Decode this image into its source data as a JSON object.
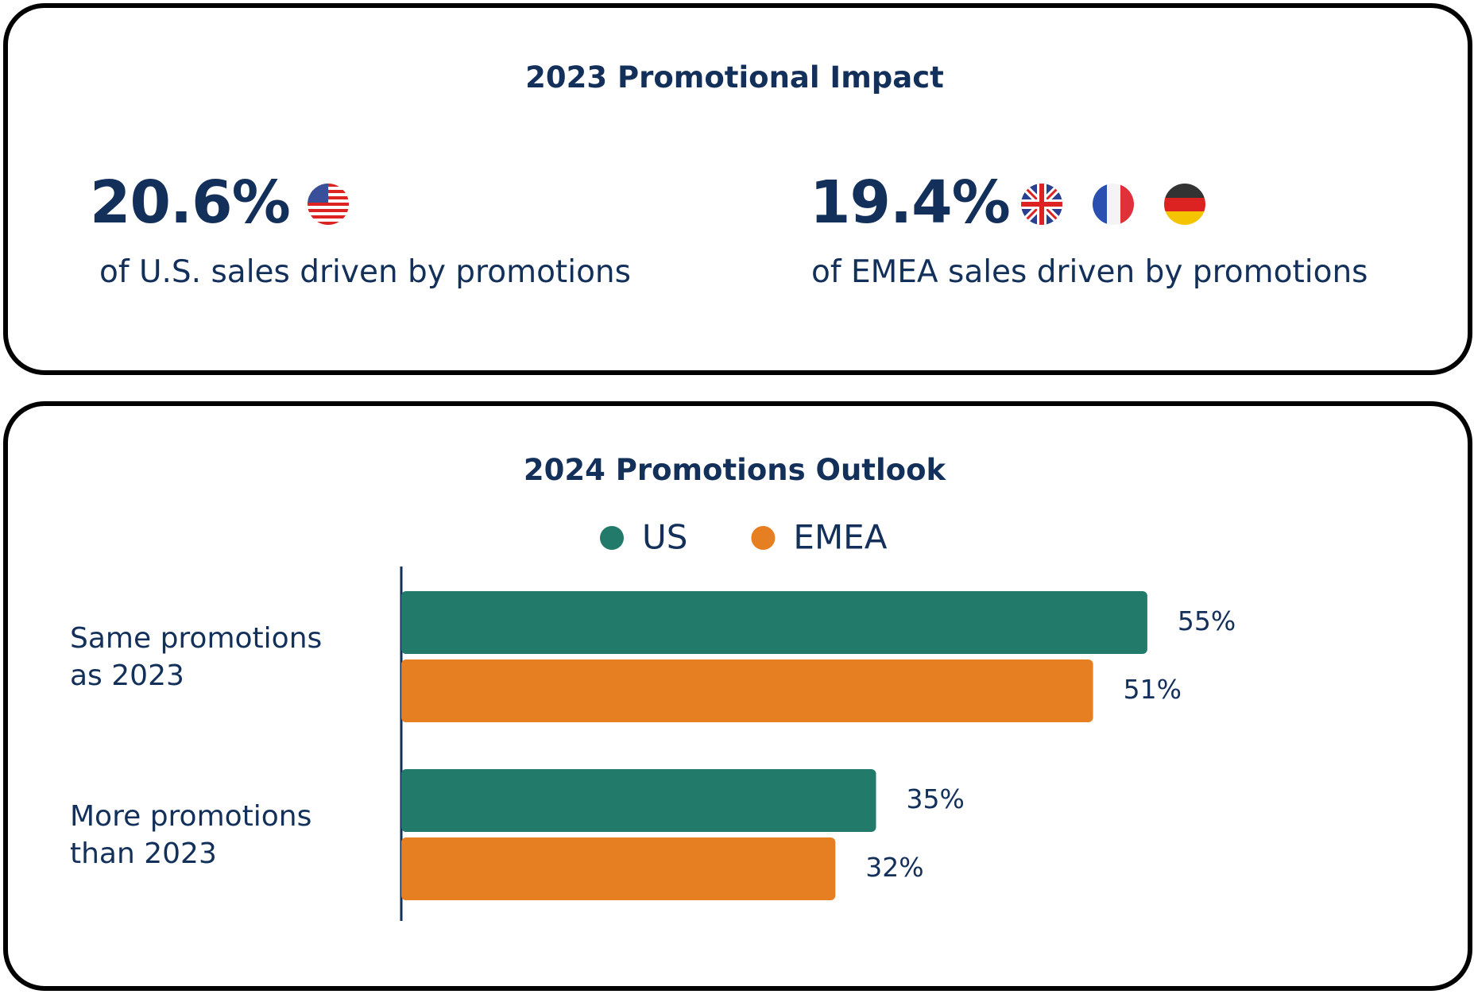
{
  "impact": {
    "title": "2023 Promotional Impact",
    "stats": [
      {
        "value": "20.6%",
        "caption": "of U.S. sales driven by promotions"
      },
      {
        "value": "19.4%",
        "caption": "of EMEA sales driven by promotions"
      }
    ]
  },
  "chart_data": {
    "type": "bar",
    "orientation": "horizontal",
    "title": "2024 Promotions Outlook",
    "categories": [
      "Same promotions as 2023",
      "More promotions than 2023"
    ],
    "series": [
      {
        "name": "US",
        "color": "#227a6b",
        "values": [
          55,
          35
        ],
        "value_labels": [
          "55%",
          "35%"
        ]
      },
      {
        "name": "EMEA",
        "color": "#e67e22",
        "values": [
          51,
          32
        ],
        "value_labels": [
          "51%",
          "32%"
        ]
      }
    ]
  }
}
